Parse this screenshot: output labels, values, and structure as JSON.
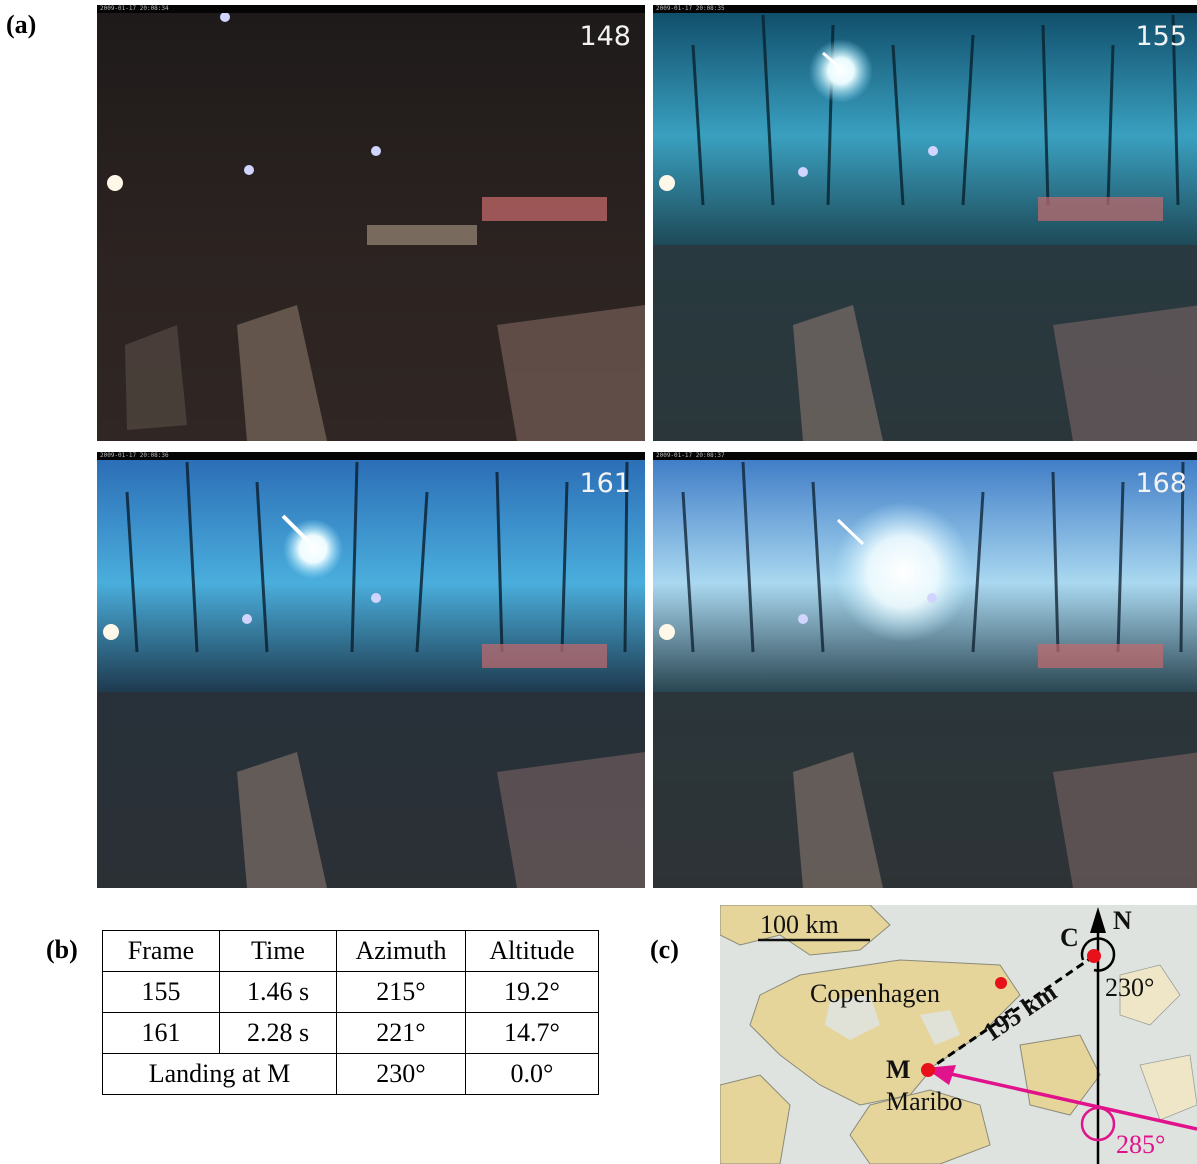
{
  "panels": {
    "a": "(a)",
    "b": "(b)",
    "c": "(c)"
  },
  "frames": [
    {
      "number": "148",
      "timestamp": "2009-01-17 20:08:34"
    },
    {
      "number": "155",
      "timestamp": "2009-01-17 20:08:35"
    },
    {
      "number": "161",
      "timestamp": "2009-01-17 20:08:36"
    },
    {
      "number": "168",
      "timestamp": "2009-01-17 20:08:37"
    }
  ],
  "table": {
    "headers": [
      "Frame",
      "Time",
      "Azimuth",
      "Altitude"
    ],
    "rows": [
      [
        "155",
        "1.46 s",
        "215°",
        "19.2°"
      ],
      [
        "161",
        "2.28 s",
        "221°",
        "14.7°"
      ]
    ],
    "landing": {
      "label": "Landing at M",
      "azimuth": "230°",
      "altitude": "0.0°"
    }
  },
  "map": {
    "scale_label": "100 km",
    "north": "N",
    "point_c": "C",
    "point_m": "M",
    "copenhagen": "Copenhagen",
    "maribo": "Maribo",
    "distance": "195 km",
    "azimuth_c": "230°",
    "direction": "285°",
    "colors": {
      "land": "#e8d9a0",
      "sea": "#e2e6e2",
      "arrow": "#e0138c",
      "dot": "#e8101a"
    }
  }
}
